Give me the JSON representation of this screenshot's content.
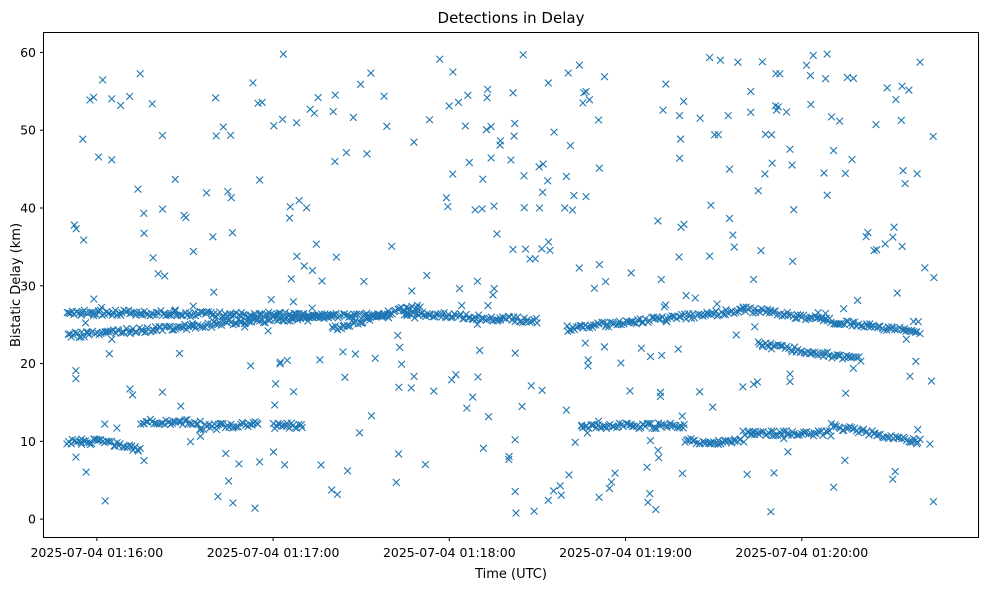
{
  "chart_data": {
    "type": "scatter",
    "title": "Detections in Delay",
    "xlabel": "Time (UTC)",
    "ylabel": "Bistatic Delay (km)",
    "xlim": [
      "2025-07-04 01:15:42",
      "2025-07-04 01:21:00"
    ],
    "ylim": [
      -2.3,
      62.5
    ],
    "x_ticks": [
      "2025-07-04 01:16:00",
      "2025-07-04 01:17:00",
      "2025-07-04 01:18:00",
      "2025-07-04 01:19:00",
      "2025-07-04 01:20:00"
    ],
    "y_ticks": [
      0,
      10,
      20,
      30,
      40,
      50,
      60
    ],
    "grid": false,
    "legend": "none",
    "marker": "x",
    "color": "#1f77b4",
    "data_start": "2025-07-04 01:15:50",
    "data_end": "2025-07-04 01:20:45",
    "tracks": [
      {
        "from": "2025-07-04 01:15:50",
        "to": "2025-07-04 01:17:40",
        "y_from": 26.6,
        "y_to": 26.1
      },
      {
        "from": "2025-07-04 01:15:50",
        "to": "2025-07-04 01:16:40",
        "y_from": 23.6,
        "y_to": 25.0
      },
      {
        "from": "2025-07-04 01:16:40",
        "to": "2025-07-04 01:17:20",
        "y_from": 25.1,
        "y_to": 26.2
      },
      {
        "from": "2025-07-04 01:17:20",
        "to": "2025-07-04 01:17:50",
        "y_from": 24.5,
        "y_to": 27.5
      },
      {
        "from": "2025-07-04 01:17:45",
        "to": "2025-07-04 01:18:30",
        "y_from": 26.5,
        "y_to": 25.5
      },
      {
        "from": "2025-07-04 01:18:40",
        "to": "2025-07-04 01:19:40",
        "y_from": 24.5,
        "y_to": 26.8
      },
      {
        "from": "2025-07-04 01:19:40",
        "to": "2025-07-04 01:20:40",
        "y_from": 27.0,
        "y_to": 24.0
      },
      {
        "from": "2025-07-04 01:19:45",
        "to": "2025-07-04 01:20:20",
        "y_from": 22.5,
        "y_to": 20.5
      },
      {
        "from": "2025-07-04 01:15:50",
        "to": "2025-07-04 01:16:00",
        "y_from": 10.0,
        "y_to": 10.0
      },
      {
        "from": "2025-07-04 01:16:00",
        "to": "2025-07-04 01:16:15",
        "y_from": 10.0,
        "y_to": 9.0
      },
      {
        "from": "2025-07-04 01:16:15",
        "to": "2025-07-04 01:16:35",
        "y_from": 12.5,
        "y_to": 12.5
      },
      {
        "from": "2025-07-04 01:16:35",
        "to": "2025-07-04 01:16:55",
        "y_from": 11.8,
        "y_to": 12.2
      },
      {
        "from": "2025-07-04 01:17:00",
        "to": "2025-07-04 01:17:10",
        "y_from": 12.0,
        "y_to": 12.0
      },
      {
        "from": "2025-07-04 01:18:45",
        "to": "2025-07-04 01:19:20",
        "y_from": 12.0,
        "y_to": 12.0
      },
      {
        "from": "2025-07-04 01:19:20",
        "to": "2025-07-04 01:19:40",
        "y_from": 10.0,
        "y_to": 10.0
      },
      {
        "from": "2025-07-04 01:19:40",
        "to": "2025-07-04 01:20:10",
        "y_from": 11.0,
        "y_to": 11.0
      },
      {
        "from": "2025-07-04 01:20:10",
        "to": "2025-07-04 01:20:40",
        "y_from": 12.0,
        "y_to": 10.0
      }
    ],
    "clutter_points": 400,
    "clutter_y_range": [
      0.5,
      60
    ]
  }
}
